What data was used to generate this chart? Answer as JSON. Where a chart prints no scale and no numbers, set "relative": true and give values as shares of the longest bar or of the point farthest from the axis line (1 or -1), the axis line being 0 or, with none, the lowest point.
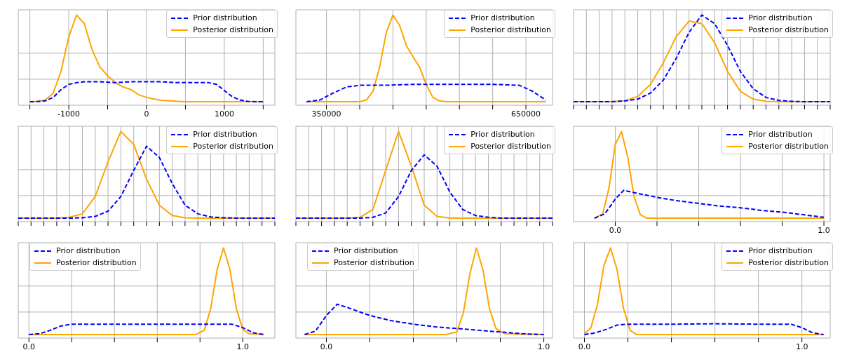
{
  "chart_data": [
    {
      "type": "line",
      "relative": true,
      "grid": true,
      "legend": "top right",
      "xlim": [
        -1650,
        1650
      ],
      "xticks": [
        {
          "value": -1500,
          "label": null
        },
        -1000,
        {
          "value": -500,
          "label": null
        },
        0,
        {
          "value": 500,
          "label": null
        },
        1000,
        {
          "value": 1500,
          "label": null
        }
      ],
      "series": [
        {
          "name": "Prior distribution",
          "color": "#0000ff",
          "line_style": "dashed",
          "x": [
            -1500,
            -1400,
            -1300,
            -1200,
            -1100,
            -1000,
            -900,
            -800,
            -600,
            -400,
            -200,
            0,
            200,
            400,
            600,
            800,
            900,
            1000,
            1100,
            1200,
            1300,
            1400,
            1500
          ],
          "values": [
            0,
            0.002,
            0.01,
            0.05,
            0.14,
            0.2,
            0.22,
            0.23,
            0.23,
            0.22,
            0.23,
            0.23,
            0.23,
            0.22,
            0.22,
            0.22,
            0.2,
            0.13,
            0.06,
            0.02,
            0.005,
            0,
            0
          ]
        },
        {
          "name": "Posterior distribution",
          "color": "#ffa500",
          "line_style": "solid",
          "x": [
            -1500,
            -1400,
            -1300,
            -1200,
            -1100,
            -1000,
            -900,
            -800,
            -700,
            -600,
            -500,
            -400,
            -300,
            -200,
            -100,
            0,
            100,
            200,
            300,
            400,
            500,
            1000,
            1500
          ],
          "values": [
            0,
            0.005,
            0.02,
            0.1,
            0.35,
            0.75,
            1.0,
            0.9,
            0.6,
            0.4,
            0.3,
            0.22,
            0.17,
            0.14,
            0.08,
            0.05,
            0.03,
            0.015,
            0.01,
            0.005,
            0,
            0,
            0
          ]
        }
      ]
    },
    {
      "type": "line",
      "relative": true,
      "grid": true,
      "legend": "top right",
      "xlim": [
        304000,
        690000
      ],
      "xticks": [
        350000,
        {
          "value": 400000,
          "label": null
        },
        {
          "value": 450000,
          "label": null
        },
        {
          "value": 500000,
          "label": null
        },
        {
          "value": 550000,
          "label": null
        },
        {
          "value": 600000,
          "label": null
        },
        650000
      ],
      "series": [
        {
          "name": "Prior distribution",
          "color": "#0000ff",
          "line_style": "dashed",
          "x": [
            320000,
            340000,
            360000,
            380000,
            400000,
            440000,
            480000,
            520000,
            560000,
            600000,
            640000,
            660000,
            680000
          ],
          "values": [
            0,
            0.02,
            0.1,
            0.17,
            0.19,
            0.19,
            0.2,
            0.2,
            0.2,
            0.2,
            0.19,
            0.12,
            0.02
          ]
        },
        {
          "name": "Posterior distribution",
          "color": "#ffa500",
          "line_style": "solid",
          "x": [
            320000,
            400000,
            410000,
            420000,
            430000,
            440000,
            450000,
            460000,
            470000,
            480000,
            490000,
            500000,
            510000,
            520000,
            530000,
            680000
          ],
          "values": [
            0,
            0,
            0.02,
            0.12,
            0.4,
            0.8,
            1.0,
            0.88,
            0.65,
            0.52,
            0.4,
            0.2,
            0.05,
            0.01,
            0,
            0
          ]
        }
      ]
    },
    {
      "type": "line",
      "relative": true,
      "grid": true,
      "legend": "top right",
      "categories": [
        null,
        null,
        null,
        null,
        null,
        null,
        null,
        null,
        null,
        null,
        null,
        null,
        null,
        null,
        null,
        null,
        null,
        null,
        null,
        null,
        null
      ],
      "series": [
        {
          "name": "Prior distribution",
          "color": "#0000ff",
          "line_style": "dashed",
          "values": [
            0,
            0,
            0,
            0,
            0.01,
            0.03,
            0.1,
            0.25,
            0.5,
            0.8,
            1.0,
            0.9,
            0.65,
            0.35,
            0.15,
            0.05,
            0.015,
            0.005,
            0,
            0,
            0
          ]
        },
        {
          "name": "Posterior distribution",
          "color": "#ffa500",
          "line_style": "solid",
          "values": [
            0,
            0,
            0,
            0,
            0.01,
            0.06,
            0.2,
            0.45,
            0.75,
            0.93,
            0.9,
            0.68,
            0.35,
            0.12,
            0.03,
            0.005,
            0,
            0,
            0,
            0,
            0
          ]
        }
      ]
    },
    {
      "type": "line",
      "relative": true,
      "grid": true,
      "legend": "top right",
      "categories": [
        null,
        null,
        null,
        null,
        null,
        null,
        null,
        null,
        null,
        null,
        null,
        null,
        null,
        null,
        null,
        null,
        null,
        null,
        null,
        null,
        null
      ],
      "series": [
        {
          "name": "Prior distribution",
          "color": "#0000ff",
          "line_style": "dashed",
          "values": [
            0,
            0,
            0,
            0,
            0,
            0.005,
            0.02,
            0.08,
            0.25,
            0.55,
            0.83,
            0.7,
            0.4,
            0.15,
            0.05,
            0.015,
            0.005,
            0,
            0,
            0,
            0
          ]
        },
        {
          "name": "Posterior distribution",
          "color": "#ffa500",
          "line_style": "solid",
          "values": [
            0,
            0,
            0,
            0,
            0.01,
            0.05,
            0.25,
            0.65,
            1.0,
            0.85,
            0.45,
            0.15,
            0.03,
            0.005,
            0,
            0,
            0,
            0,
            0,
            0,
            0
          ]
        }
      ]
    },
    {
      "type": "line",
      "relative": true,
      "grid": true,
      "legend": "top right",
      "categories": [
        null,
        null,
        null,
        null,
        null,
        null,
        null,
        null,
        null,
        null,
        null,
        null,
        null,
        null,
        null,
        null,
        null,
        null,
        null,
        null,
        null
      ],
      "series": [
        {
          "name": "Prior distribution",
          "color": "#0000ff",
          "line_style": "dashed",
          "values": [
            0,
            0,
            0,
            0,
            0,
            0,
            0.01,
            0.06,
            0.25,
            0.55,
            0.73,
            0.6,
            0.3,
            0.1,
            0.03,
            0.01,
            0,
            0,
            0,
            0,
            0
          ]
        },
        {
          "name": "Posterior distribution",
          "color": "#ffa500",
          "line_style": "solid",
          "values": [
            0,
            0,
            0,
            0,
            0,
            0.01,
            0.1,
            0.55,
            1.0,
            0.6,
            0.15,
            0.02,
            0,
            0,
            0,
            0,
            0,
            0,
            0,
            0,
            0
          ]
        }
      ]
    },
    {
      "type": "line",
      "relative": true,
      "grid": true,
      "legend": "top right",
      "xlim": [
        -0.2,
        1.03
      ],
      "xticks": [
        {
          "value": 0,
          "label": "0.0"
        },
        {
          "value": 0.2,
          "label": null
        },
        {
          "value": 0.4,
          "label": null
        },
        {
          "value": 0.6,
          "label": null
        },
        {
          "value": 0.8,
          "label": null
        },
        {
          "value": 1,
          "label": "1.0"
        }
      ],
      "series": [
        {
          "name": "Prior distribution",
          "color": "#0000ff",
          "line_style": "dashed",
          "x": [
            -0.1,
            -0.05,
            0,
            0.04,
            0.1,
            0.2,
            0.3,
            0.4,
            0.5,
            0.6,
            0.7,
            0.8,
            0.9,
            1.0
          ],
          "values": [
            0,
            0.05,
            0.22,
            0.32,
            0.29,
            0.24,
            0.2,
            0.17,
            0.14,
            0.12,
            0.09,
            0.07,
            0.04,
            0.01
          ]
        },
        {
          "name": "Posterior distribution",
          "color": "#ffa500",
          "line_style": "solid",
          "x": [
            -0.1,
            -0.06,
            -0.03,
            0,
            0.03,
            0.06,
            0.09,
            0.12,
            0.15,
            1.0
          ],
          "values": [
            0,
            0.05,
            0.35,
            0.85,
            1.0,
            0.7,
            0.25,
            0.04,
            0,
            0
          ]
        }
      ]
    },
    {
      "type": "line",
      "relative": true,
      "grid": true,
      "legend": "top left",
      "xlim": [
        -0.05,
        1.15
      ],
      "xticks": [
        {
          "value": 0,
          "label": "0.0"
        },
        {
          "value": 0.2,
          "label": null
        },
        {
          "value": 0.4,
          "label": null
        },
        {
          "value": 0.6,
          "label": null
        },
        {
          "value": 0.8,
          "label": null
        },
        {
          "value": 1,
          "label": "1.0"
        }
      ],
      "series": [
        {
          "name": "Prior distribution",
          "color": "#0000ff",
          "line_style": "dashed",
          "x": [
            0,
            0.05,
            0.1,
            0.15,
            0.2,
            0.4,
            0.6,
            0.8,
            0.95,
            1.0,
            1.05,
            1.1
          ],
          "values": [
            0,
            0.01,
            0.05,
            0.1,
            0.12,
            0.12,
            0.12,
            0.12,
            0.12,
            0.08,
            0.02,
            0
          ]
        },
        {
          "name": "Posterior distribution",
          "color": "#ffa500",
          "line_style": "solid",
          "x": [
            0,
            0.78,
            0.82,
            0.85,
            0.88,
            0.91,
            0.94,
            0.97,
            1.0,
            1.03,
            1.1
          ],
          "values": [
            0,
            0,
            0.05,
            0.3,
            0.75,
            1.0,
            0.75,
            0.3,
            0.06,
            0.01,
            0
          ]
        }
      ]
    },
    {
      "type": "line",
      "relative": true,
      "grid": true,
      "legend": "top left",
      "xlim": [
        -0.14,
        1.04
      ],
      "xticks": [
        {
          "value": 0,
          "label": "0.0"
        },
        {
          "value": 0.2,
          "label": null
        },
        {
          "value": 0.4,
          "label": null
        },
        {
          "value": 0.6,
          "label": null
        },
        {
          "value": 0.8,
          "label": null
        },
        {
          "value": 1,
          "label": "1.0"
        }
      ],
      "series": [
        {
          "name": "Prior distribution",
          "color": "#0000ff",
          "line_style": "dashed",
          "x": [
            -0.1,
            -0.05,
            0,
            0.05,
            0.1,
            0.2,
            0.3,
            0.4,
            0.5,
            0.6,
            0.7,
            0.8,
            0.9,
            1.0
          ],
          "values": [
            0,
            0.04,
            0.22,
            0.35,
            0.31,
            0.22,
            0.16,
            0.12,
            0.09,
            0.07,
            0.05,
            0.03,
            0.01,
            0
          ]
        },
        {
          "name": "Posterior distribution",
          "color": "#ffa500",
          "line_style": "solid",
          "x": [
            -0.1,
            0.55,
            0.6,
            0.63,
            0.66,
            0.69,
            0.72,
            0.75,
            0.78,
            0.82,
            1.0
          ],
          "values": [
            0,
            0,
            0.03,
            0.25,
            0.7,
            1.0,
            0.75,
            0.3,
            0.07,
            0.01,
            0
          ]
        }
      ]
    },
    {
      "type": "line",
      "relative": true,
      "grid": true,
      "legend": "top right",
      "xlim": [
        -0.05,
        1.13
      ],
      "xticks": [
        {
          "value": 0,
          "label": "0.0"
        },
        {
          "value": 0.2,
          "label": null
        },
        {
          "value": 0.4,
          "label": null
        },
        {
          "value": 0.6,
          "label": null
        },
        {
          "value": 0.8,
          "label": null
        },
        {
          "value": 1,
          "label": "1.0"
        }
      ],
      "series": [
        {
          "name": "Prior distribution",
          "color": "#0000ff",
          "line_style": "dashed",
          "x": [
            0,
            0.05,
            0.1,
            0.15,
            0.2,
            0.4,
            0.6,
            0.8,
            0.95,
            1.0,
            1.05,
            1.1
          ],
          "values": [
            0,
            0.02,
            0.06,
            0.11,
            0.12,
            0.12,
            0.125,
            0.12,
            0.12,
            0.08,
            0.02,
            0
          ]
        },
        {
          "name": "Posterior distribution",
          "color": "#ffa500",
          "line_style": "solid",
          "x": [
            0,
            0.03,
            0.06,
            0.09,
            0.12,
            0.15,
            0.18,
            0.21,
            0.24,
            1.1
          ],
          "values": [
            0.01,
            0.08,
            0.35,
            0.8,
            1.0,
            0.75,
            0.3,
            0.05,
            0,
            0
          ]
        }
      ]
    }
  ]
}
